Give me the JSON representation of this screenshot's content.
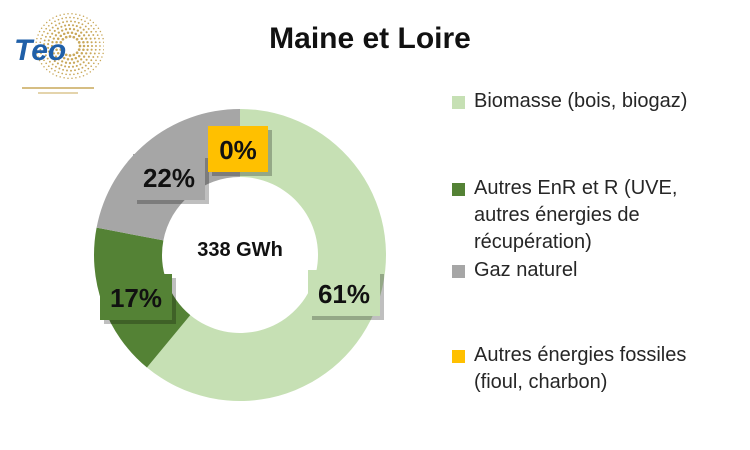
{
  "logo": {
    "text": "Teo",
    "tagline": ""
  },
  "chart_data": {
    "type": "pie",
    "title": "Maine et Loire",
    "center_label": "338 GWh",
    "donut": true,
    "legend_position": "right",
    "series": [
      {
        "name": "Biomasse (bois, biogaz)",
        "value": 61,
        "label": "61%",
        "color": "#c6e0b4"
      },
      {
        "name": "Autres EnR et R (UVE, autres énergies de récupération)",
        "value": 17,
        "label": "17%",
        "color": "#548235"
      },
      {
        "name": "Gaz naturel",
        "value": 22,
        "label": "22%",
        "color": "#a6a6a6"
      },
      {
        "name": "Autres énergies fossiles (fioul, charbon)",
        "value": 0,
        "label": "0%",
        "color": "#ffc000"
      }
    ]
  }
}
